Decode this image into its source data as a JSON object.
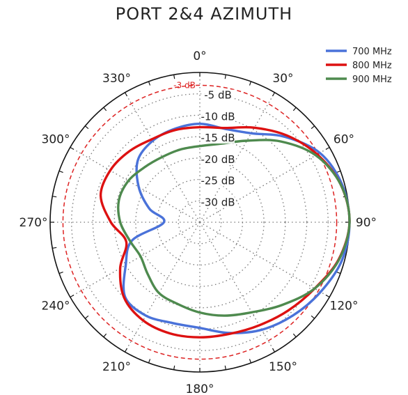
{
  "title": "PORT 2&4 AZIMUTH",
  "chart_data": {
    "type": "polar-line",
    "title": "PORT 2&4 AZIMUTH",
    "theta_unit": "deg",
    "theta_direction": "clockwise",
    "theta_zero": "top",
    "theta_ticks": [
      0,
      30,
      60,
      90,
      120,
      150,
      180,
      210,
      240,
      270,
      300,
      330
    ],
    "theta_tick_labels": [
      "0°",
      "30°",
      "60°",
      "90°",
      "120°",
      "150°",
      "180°",
      "210°",
      "240°",
      "270°",
      "300°",
      "330°"
    ],
    "r_unit": "dB",
    "r_range": [
      -35,
      0
    ],
    "r_ticks": [
      -30,
      -25,
      -20,
      -15,
      -10,
      -5
    ],
    "r_tick_labels": [
      "-30 dB",
      "-25 dB",
      "-20 dB",
      "-15 dB",
      "-10 dB",
      "-5 dB"
    ],
    "reference_circle": {
      "value": -3,
      "label": "-3 dB",
      "color": "#dd2222",
      "style": "dashed"
    },
    "grid": true,
    "legend_position": "top-right",
    "series": [
      {
        "name": "700 MHz",
        "color": "#4a72d9",
        "points": [
          [
            0,
            -12.0
          ],
          [
            15,
            -12.4
          ],
          [
            30,
            -11.0
          ],
          [
            45,
            -6.8
          ],
          [
            60,
            -2.6
          ],
          [
            75,
            -0.6
          ],
          [
            90,
            0.0
          ],
          [
            105,
            -0.6
          ],
          [
            120,
            -2.4
          ],
          [
            135,
            -4.2
          ],
          [
            150,
            -6.0
          ],
          [
            165,
            -8.2
          ],
          [
            180,
            -10.3
          ],
          [
            195,
            -10.6
          ],
          [
            210,
            -9.8
          ],
          [
            225,
            -10.3
          ],
          [
            240,
            -15.0
          ],
          [
            255,
            -18.6
          ],
          [
            270,
            -26.6
          ],
          [
            285,
            -22.8
          ],
          [
            300,
            -18.5
          ],
          [
            315,
            -14.5
          ],
          [
            330,
            -13.0
          ],
          [
            345,
            -12.4
          ],
          [
            360,
            -12.0
          ]
        ]
      },
      {
        "name": "800 MHz",
        "color": "#dd1111",
        "points": [
          [
            0,
            -12.8
          ],
          [
            15,
            -12.2
          ],
          [
            30,
            -9.5
          ],
          [
            45,
            -6.3
          ],
          [
            60,
            -3.3
          ],
          [
            75,
            -0.9
          ],
          [
            90,
            0.0
          ],
          [
            105,
            -1.4
          ],
          [
            120,
            -4.0
          ],
          [
            135,
            -5.8
          ],
          [
            150,
            -7.2
          ],
          [
            165,
            -8.0
          ],
          [
            180,
            -8.1
          ],
          [
            195,
            -8.1
          ],
          [
            210,
            -8.5
          ],
          [
            225,
            -10.0
          ],
          [
            240,
            -13.5
          ],
          [
            255,
            -17.2
          ],
          [
            270,
            -14.2
          ],
          [
            285,
            -11.0
          ],
          [
            300,
            -10.8
          ],
          [
            315,
            -11.6
          ],
          [
            330,
            -12.6
          ],
          [
            345,
            -12.7
          ],
          [
            360,
            -12.8
          ]
        ]
      },
      {
        "name": "900 MHz",
        "color": "#4e8a4e",
        "points": [
          [
            0,
            -17.2
          ],
          [
            15,
            -16.0
          ],
          [
            30,
            -13.0
          ],
          [
            45,
            -8.3
          ],
          [
            60,
            -3.7
          ],
          [
            75,
            -0.9
          ],
          [
            90,
            0.0
          ],
          [
            105,
            -1.3
          ],
          [
            120,
            -4.0
          ],
          [
            135,
            -7.7
          ],
          [
            150,
            -10.7
          ],
          [
            165,
            -12.4
          ],
          [
            180,
            -13.9
          ],
          [
            195,
            -15.2
          ],
          [
            210,
            -15.9
          ],
          [
            225,
            -17.8
          ],
          [
            240,
            -19.0
          ],
          [
            255,
            -18.1
          ],
          [
            270,
            -16.4
          ],
          [
            285,
            -15.4
          ],
          [
            300,
            -15.7
          ],
          [
            315,
            -16.8
          ],
          [
            330,
            -17.4
          ],
          [
            345,
            -17.4
          ],
          [
            360,
            -17.2
          ]
        ]
      }
    ]
  }
}
